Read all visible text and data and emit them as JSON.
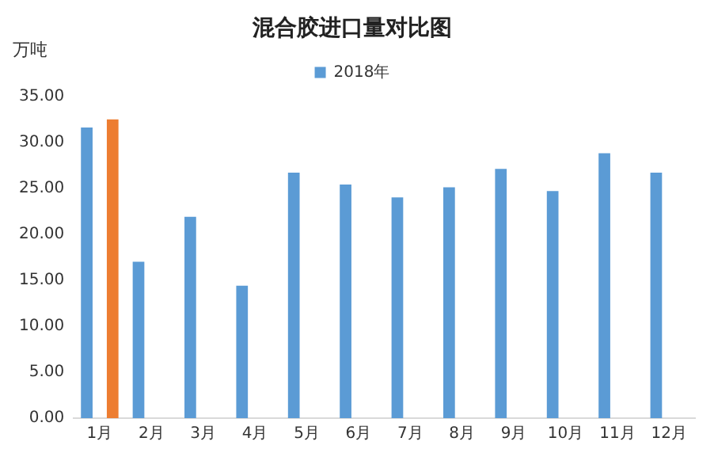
{
  "chart_data": {
    "type": "bar",
    "title": "混合胶进口量对比图",
    "ylabel": "万吨",
    "categories": [
      "1月",
      "2月",
      "3月",
      "4月",
      "5月",
      "6月",
      "7月",
      "8月",
      "9月",
      "10月",
      "11月",
      "12月"
    ],
    "series": [
      {
        "name": "2018年",
        "color": "#5b9bd5",
        "values": [
          31.6,
          17.0,
          21.9,
          14.4,
          26.7,
          25.4,
          24.0,
          25.1,
          27.1,
          24.7,
          28.8,
          26.7
        ]
      },
      {
        "color": "#ed7d31",
        "values": [
          32.5,
          null,
          null,
          null,
          null,
          null,
          null,
          null,
          null,
          null,
          null,
          null
        ]
      }
    ],
    "ylim": [
      0,
      35
    ],
    "yticks": [
      {
        "value": 0,
        "label": "0.00"
      },
      {
        "value": 5,
        "label": "5.00"
      },
      {
        "value": 10,
        "label": "10.00"
      },
      {
        "value": 15,
        "label": "15.00"
      },
      {
        "value": 20,
        "label": "20.00"
      },
      {
        "value": 25,
        "label": "25.00"
      },
      {
        "value": 30,
        "label": "30.00"
      },
      {
        "value": 35,
        "label": "35.00"
      }
    ],
    "grid": false,
    "legend": "top"
  }
}
